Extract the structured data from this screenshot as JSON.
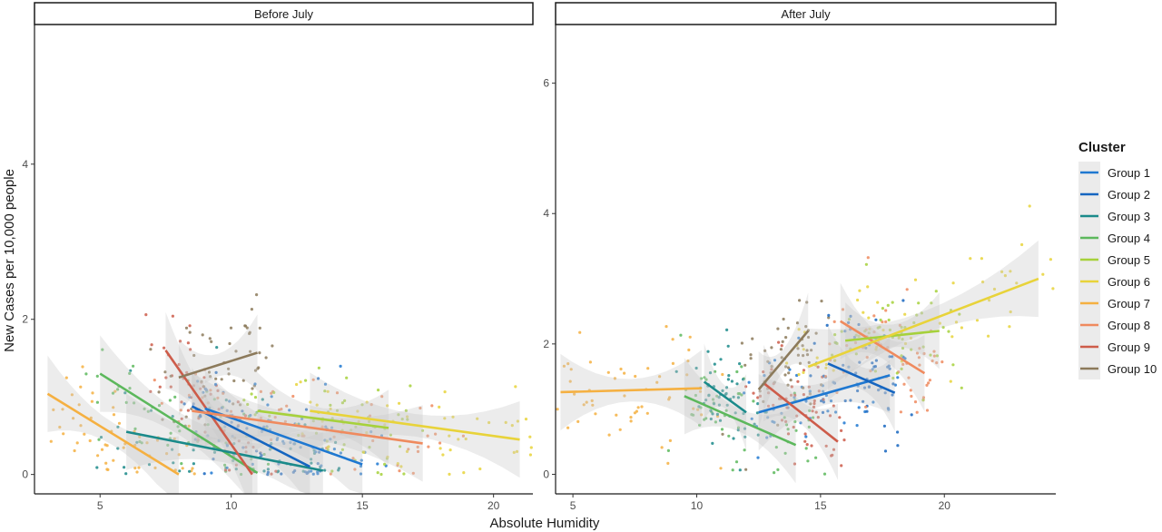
{
  "chart_data": {
    "type": "scatter",
    "xlabel": "Absolute Humidity",
    "ylabel": "New Cases per 10,000 people",
    "legend": {
      "title": "Cluster",
      "position": "right"
    },
    "series": [
      {
        "name": "Group 1",
        "color": "#1f78d1"
      },
      {
        "name": "Group 2",
        "color": "#1565c0"
      },
      {
        "name": "Group 3",
        "color": "#1a8a8a"
      },
      {
        "name": "Group 4",
        "color": "#5cb85c"
      },
      {
        "name": "Group 5",
        "color": "#a6d13b"
      },
      {
        "name": "Group 6",
        "color": "#e8d33a"
      },
      {
        "name": "Group 7",
        "color": "#f5b041"
      },
      {
        "name": "Group 8",
        "color": "#ef8a5e"
      },
      {
        "name": "Group 9",
        "color": "#cd5c4a"
      },
      {
        "name": "Group 10",
        "color": "#8c7a5b"
      }
    ],
    "panels": [
      {
        "title": "Before July",
        "xlim": [
          2.5,
          21.5
        ],
        "ylim": [
          -0.25,
          5.8
        ],
        "xticks": [
          5,
          10,
          15,
          20
        ],
        "yticks": [
          0,
          2,
          4
        ],
        "fits": [
          {
            "group": 7,
            "x": [
              3,
              8
            ],
            "y": [
              1.04,
              0.0
            ]
          },
          {
            "group": 4,
            "x": [
              5,
              11
            ],
            "y": [
              1.3,
              0.02
            ]
          },
          {
            "group": 3,
            "x": [
              6,
              13.5
            ],
            "y": [
              0.55,
              0.05
            ]
          },
          {
            "group": 9,
            "x": [
              7.5,
              10.8
            ],
            "y": [
              1.6,
              0.0
            ]
          },
          {
            "group": 10,
            "x": [
              8,
              11
            ],
            "y": [
              1.25,
              1.57
            ]
          },
          {
            "group": 2,
            "x": [
              8.5,
              13
            ],
            "y": [
              0.88,
              0.1
            ]
          },
          {
            "group": 1,
            "x": [
              9,
              15
            ],
            "y": [
              0.85,
              0.13
            ]
          },
          {
            "group": 8,
            "x": [
              8.5,
              17.3
            ],
            "y": [
              0.82,
              0.4
            ]
          },
          {
            "group": 5,
            "x": [
              11,
              16
            ],
            "y": [
              0.82,
              0.6
            ]
          },
          {
            "group": 6,
            "x": [
              13,
              21
            ],
            "y": [
              0.82,
              0.45
            ]
          }
        ]
      },
      {
        "title": "After July",
        "xlim": [
          4.3,
          24.5
        ],
        "ylim": [
          -0.3,
          6.9
        ],
        "xticks": [
          5,
          10,
          15,
          20
        ],
        "yticks": [
          0,
          2,
          4,
          6
        ],
        "fits": [
          {
            "group": 7,
            "x": [
              4.5,
              10.2
            ],
            "y": [
              1.26,
              1.32
            ]
          },
          {
            "group": 4,
            "x": [
              9.5,
              14
            ],
            "y": [
              1.2,
              0.45
            ]
          },
          {
            "group": 3,
            "x": [
              10.3,
              12
            ],
            "y": [
              1.42,
              0.95
            ]
          },
          {
            "group": 1,
            "x": [
              12.5,
              17.8
            ],
            "y": [
              0.95,
              1.52
            ]
          },
          {
            "group": 9,
            "x": [
              12.7,
              15.7
            ],
            "y": [
              1.4,
              0.5
            ]
          },
          {
            "group": 10,
            "x": [
              12.5,
              14.5
            ],
            "y": [
              1.3,
              2.2
            ]
          },
          {
            "group": 2,
            "x": [
              15.3,
              18
            ],
            "y": [
              1.7,
              1.25
            ]
          },
          {
            "group": 8,
            "x": [
              15.8,
              19.2
            ],
            "y": [
              2.35,
              1.55
            ]
          },
          {
            "group": 5,
            "x": [
              16,
              19.8
            ],
            "y": [
              2.05,
              2.2
            ]
          },
          {
            "group": 6,
            "x": [
              14.5,
              23.8
            ],
            "y": [
              1.65,
              3.0
            ]
          }
        ]
      }
    ]
  }
}
